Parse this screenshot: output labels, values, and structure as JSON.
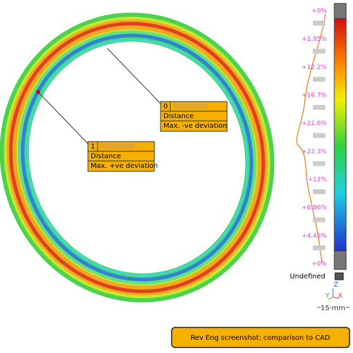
{
  "callouts": [
    {
      "id": "0",
      "measure": "Distance",
      "description": "Max. -ve deviation"
    },
    {
      "id": "1",
      "measure": "Distance",
      "description": "Max. +ve deviation"
    }
  ],
  "scale": {
    "labels": [
      "+0%",
      "+1.85%",
      "+12.2%",
      "+16.7%",
      "+21.6%",
      "+22.3%",
      "+12%",
      "+8.86%",
      "+4.45%",
      "+0%"
    ],
    "undefined": "Undefined"
  },
  "axes": {
    "z": "Z",
    "y": "Y",
    "x": "X",
    "scale_bar": "15 mm"
  },
  "caption": "Rev Eng screenshot: comparison to CAD"
}
